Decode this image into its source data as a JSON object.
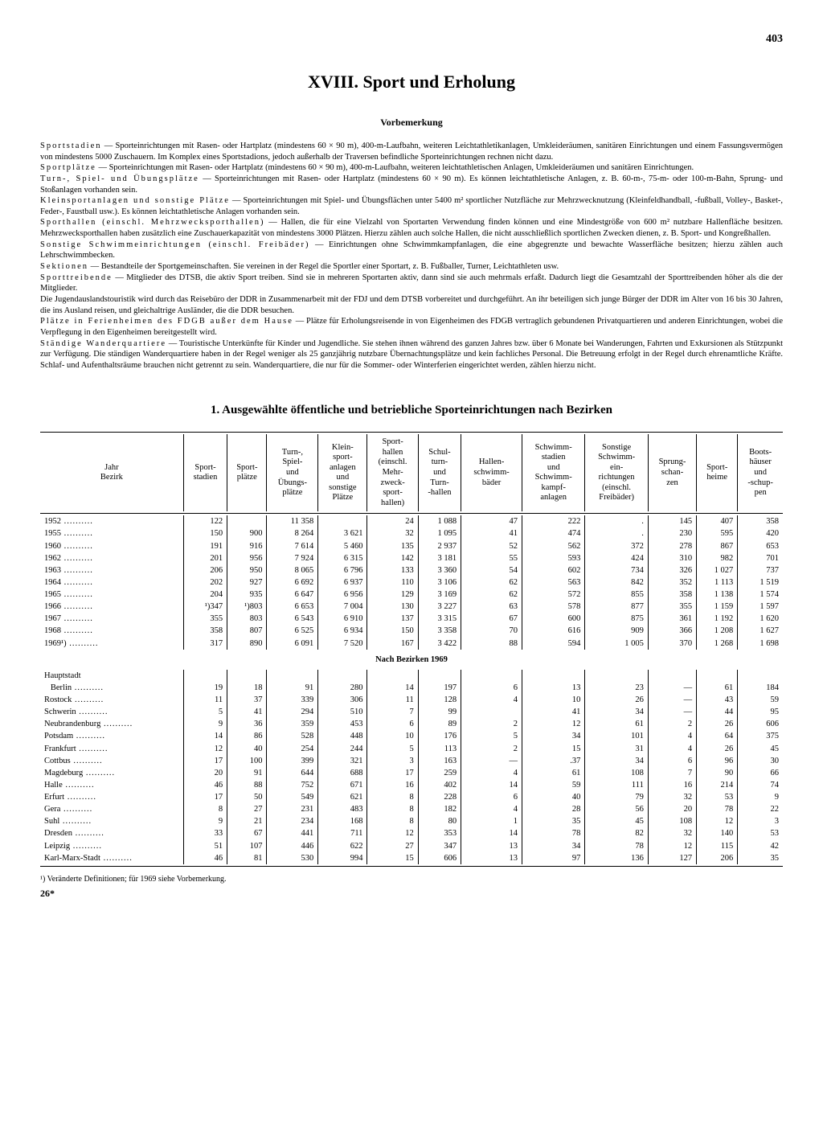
{
  "page_number": "403",
  "chapter_title": "XVIII. Sport und Erholung",
  "subtitle": "Vorbemerkung",
  "definitions_html": "<span class='term'>Sportstadien</span> — Sporteinrichtungen mit Rasen- oder Hartplatz (mindestens 60 × 90 m), 400-m-Laufbahn, weiteren Leichtathletikanlagen, Umkleideräumen, sanitären Einrichtungen und einem Fassungsvermögen von mindestens 5000 Zuschauern. Im Komplex eines Sportstadions, jedoch außerhalb der Traversen befindliche Sporteinrichtungen rechnen nicht dazu.<br><span class='term'>Sportplätze</span> — Sporteinrichtungen mit Rasen- oder Hartplatz (mindestens 60 × 90 m), 400-m-Laufbahn, weiteren leichtathletischen Anlagen, Umkleideräumen und sanitären Einrichtungen.<br><span class='term'>Turn-, Spiel- und Übungsplätze</span> — Sporteinrichtungen mit Rasen- oder Hartplatz (mindestens 60 × 90 m). Es können leichtathletische Anlagen, z. B. 60-m-, 75-m- oder 100-m-Bahn, Sprung- und Stoßanlagen vorhanden sein.<br><span class='term'>Kleinsportanlagen und sonstige Plätze</span> — Sporteinrichtungen mit Spiel- und Übungsflächen unter 5400 m² sportlicher Nutzfläche zur Mehrzwecknutzung (Kleinfeldhandball, -fußball, Volley-, Basket-, Feder-, Faustball usw.). Es können leichtathletische Anlagen vorhanden sein.<br><span class='term'>Sporthallen (einschl. Mehrzwecksporthallen)</span> — Hallen, die für eine Vielzahl von Sportarten Verwendung finden können und eine Mindestgröße von 600 m² nutzbare Hallenfläche besitzen. Mehrzwecksporthallen haben zusätzlich eine Zuschauerkapazität von mindestens 3000 Plätzen. Hierzu zählen auch solche Hallen, die nicht ausschließlich sportlichen Zwecken dienen, z. B. Sport- und Kongreßhallen.<br><span class='term'>Sonstige Schwimmeinrichtungen (einschl. Freibäder)</span> — Einrichtungen ohne Schwimmkampfanlagen, die eine abgegrenzte und bewachte Wasserfläche besitzen; hierzu zählen auch Lehrschwimmbecken.<br><span class='term'>Sektionen</span> — Bestandteile der Sportgemeinschaften. Sie vereinen in der Regel die Sportler einer Sportart, z. B. Fußballer, Turner, Leichtathleten usw.<br><span class='term'>Sporttreibende</span> — Mitglieder des DTSB, die aktiv Sport treiben. Sind sie in mehreren Sportarten aktiv, dann sind sie auch mehrmals erfaßt. Dadurch liegt die Gesamtzahl der Sporttreibenden höher als die der Mitglieder.<br>Die Jugendauslandstouristik wird durch das Reisebüro der DDR in Zusammenarbeit mit der FDJ und dem DTSB vorbereitet und durchgeführt. An ihr beteiligen sich junge Bürger der DDR im Alter von 16 bis 30 Jahren, die ins Ausland reisen, und gleichaltrige Ausländer, die die DDR besuchen.<br><span class='term'>Plätze in Ferienheimen des FDGB außer dem Hause</span> — Plätze für Erholungsreisende in von Eigenheimen des FDGB vertraglich gebundenen Privatquartieren und anderen Einrichtungen, wobei die Verpflegung in den Eigenheimen bereitgestellt wird.<br><span class='term'>Ständige Wanderquartiere</span> — Touristische Unterkünfte für Kinder und Jugendliche. Sie stehen ihnen während des ganzen Jahres bzw. über 6 Monate bei Wanderungen, Fahrten und Exkursionen als Stützpunkt zur Verfügung. Die ständigen Wanderquartiere haben in der Regel weniger als 25 ganzjährig nutzbare Übernachtungsplätze und kein fachliches Personal. Die Betreuung erfolgt in der Regel durch ehrenamtliche Kräfte. Schlaf- und Aufenthaltsräume brauchen nicht getrennt zu sein. Wanderquartiere, die nur für die Sommer- oder Winterferien eingerichtet werden, zählen hierzu nicht.",
  "table_title": "1. Ausgewählte öffentliche und betriebliche Sporteinrichtungen nach Bezirken",
  "columns": [
    "Jahr<br>Bezirk",
    "Sport-<br>stadien",
    "Sport-<br>plätze",
    "Turn-,<br>Spiel-<br>und<br>Übungs-<br>plätze",
    "Klein-<br>sport-<br>anlagen<br>und<br>sonstige<br>Plätze",
    "Sport-<br>hallen<br>(einschl.<br>Mehr-<br>zweck-<br>sport-<br>hallen)",
    "Schul-<br>turn-<br>und<br>Turn-<br>-hallen",
    "Hallen-<br>schwimm-<br>bäder",
    "Schwimm-<br>stadien<br>und<br>Schwimm-<br>kampf-<br>anlagen",
    "Sonstige<br>Schwimm-<br>ein-<br>richtungen<br>(einschl.<br>Freibäder)",
    "Sprung-<br>schan-<br>zen",
    "Sport-<br>heime",
    "Boots-<br>häuser<br>und<br>-schup-<br>pen"
  ],
  "year_rows": [
    [
      "1952",
      "122",
      "",
      "11 358",
      "",
      "24",
      "1 088",
      "47",
      "222",
      ".",
      "145",
      "407",
      "358"
    ],
    [
      "1955",
      "150",
      "900",
      "8 264",
      "3 621",
      "32",
      "1 095",
      "41",
      "474",
      ".",
      "230",
      "595",
      "420"
    ],
    [
      "1960",
      "191",
      "916",
      "7 614",
      "5 460",
      "135",
      "2 937",
      "52",
      "562",
      "372",
      "278",
      "867",
      "653"
    ],
    [
      "1962",
      "201",
      "956",
      "7 924",
      "6 315",
      "142",
      "3 181",
      "55",
      "593",
      "424",
      "310",
      "982",
      "701"
    ],
    [
      "1963",
      "206",
      "950",
      "8 065",
      "6 796",
      "133",
      "3 360",
      "54",
      "602",
      "734",
      "326",
      "1 027",
      "737"
    ],
    [
      "1964",
      "202",
      "927",
      "6 692",
      "6 937",
      "110",
      "3 106",
      "62",
      "563",
      "842",
      "352",
      "1 113",
      "1 519"
    ],
    [
      "1965",
      "204",
      "935",
      "6 647",
      "6 956",
      "129",
      "3 169",
      "62",
      "572",
      "855",
      "358",
      "1 138",
      "1 574"
    ],
    [
      "1966",
      "¹)347",
      "¹)803",
      "6 653",
      "7 004",
      "130",
      "3 227",
      "63",
      "578",
      "877",
      "355",
      "1 159",
      "1 597"
    ],
    [
      "1967",
      "355",
      "803",
      "6 543",
      "6 910",
      "137",
      "3 315",
      "67",
      "600",
      "875",
      "361",
      "1 192",
      "1 620"
    ],
    [
      "1968",
      "358",
      "807",
      "6 525",
      "6 934",
      "150",
      "3 358",
      "70",
      "616",
      "909",
      "366",
      "1 208",
      "1 627"
    ],
    [
      "1969¹)",
      "317",
      "890",
      "6 091",
      "7 520",
      "167",
      "3 422",
      "88",
      "594",
      "1 005",
      "370",
      "1 268",
      "1 698"
    ]
  ],
  "section_label": "Nach Bezirken 1969",
  "hauptstadt_label": "Hauptstadt",
  "bezirk_rows": [
    [
      "Berlin",
      "19",
      "18",
      "91",
      "280",
      "14",
      "197",
      "6",
      "13",
      "23",
      "—",
      "61",
      "184"
    ],
    [
      "Rostock",
      "11",
      "37",
      "339",
      "306",
      "11",
      "128",
      "4",
      "10",
      "26",
      "—",
      "43",
      "59"
    ],
    [
      "Schwerin",
      "5",
      "41",
      "294",
      "510",
      "7",
      "99",
      "",
      "41",
      "34",
      "—",
      "44",
      "95"
    ],
    [
      "Neubrandenburg",
      "9",
      "36",
      "359",
      "453",
      "6",
      "89",
      "2",
      "12",
      "61",
      "2",
      "26",
      "606"
    ],
    [
      "Potsdam",
      "14",
      "86",
      "528",
      "448",
      "10",
      "176",
      "5",
      "34",
      "101",
      "4",
      "64",
      "375"
    ],
    [
      "Frankfurt",
      "12",
      "40",
      "254",
      "244",
      "5",
      "113",
      "2",
      "15",
      "31",
      "4",
      "26",
      "45"
    ],
    [
      "Cottbus",
      "17",
      "100",
      "399",
      "321",
      "3",
      "163",
      "—",
      ".37",
      "34",
      "6",
      "96",
      "30"
    ],
    [
      "Magdeburg",
      "20",
      "91",
      "644",
      "688",
      "17",
      "259",
      "4",
      "61",
      "108",
      "7",
      "90",
      "66"
    ],
    [
      "Halle",
      "46",
      "88",
      "752",
      "671",
      "16",
      "402",
      "14",
      "59",
      "111",
      "16",
      "214",
      "74"
    ],
    [
      "Erfurt",
      "17",
      "50",
      "549",
      "621",
      "8",
      "228",
      "6",
      "40",
      "79",
      "32",
      "53",
      "9"
    ],
    [
      "Gera",
      "8",
      "27",
      "231",
      "483",
      "8",
      "182",
      "4",
      "28",
      "56",
      "20",
      "78",
      "22"
    ],
    [
      "Suhl",
      "9",
      "21",
      "234",
      "168",
      "8",
      "80",
      "1",
      "35",
      "45",
      "108",
      "12",
      "3"
    ],
    [
      "Dresden",
      "33",
      "67",
      "441",
      "711",
      "12",
      "353",
      "14",
      "78",
      "82",
      "32",
      "140",
      "53"
    ],
    [
      "Leipzig",
      "51",
      "107",
      "446",
      "622",
      "27",
      "347",
      "13",
      "34",
      "78",
      "12",
      "115",
      "42"
    ],
    [
      "Karl-Marx-Stadt",
      "46",
      "81",
      "530",
      "994",
      "15",
      "606",
      "13",
      "97",
      "136",
      "127",
      "206",
      "35"
    ]
  ],
  "footnote": "¹) Veränderte Definitionen; für 1969 siehe Vorbemerkung.",
  "page_footer": "26*"
}
